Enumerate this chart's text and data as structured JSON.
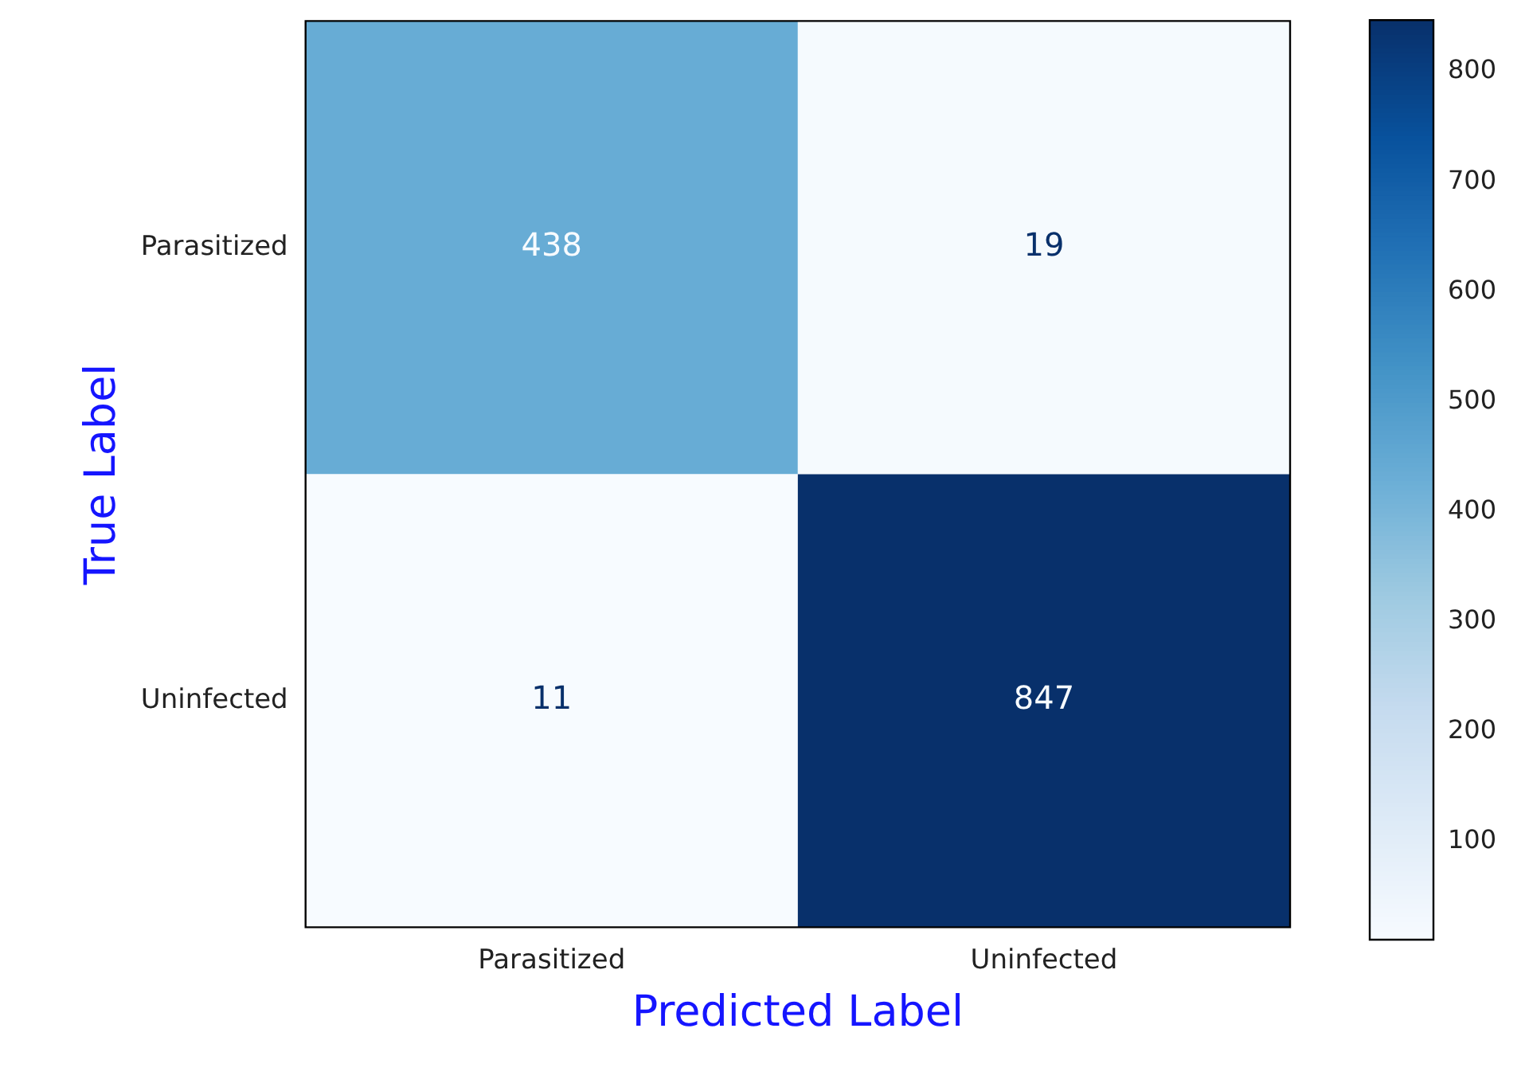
{
  "chart_data": {
    "type": "heatmap",
    "xlabel": "Predicted Label",
    "ylabel": "True Label",
    "categories": [
      "Parasitized",
      "Uninfected"
    ],
    "y_categories": [
      "Parasitized",
      "Uninfected"
    ],
    "cells": [
      [
        438,
        19
      ],
      [
        11,
        847
      ]
    ],
    "data_labels": true,
    "clim": [
      11,
      847
    ],
    "cticks": [
      100,
      200,
      300,
      400,
      500,
      600,
      700,
      800
    ]
  }
}
